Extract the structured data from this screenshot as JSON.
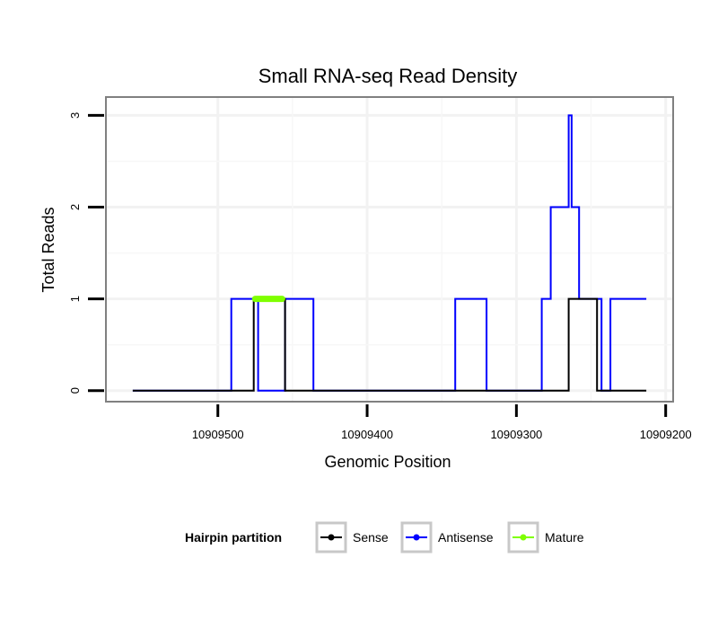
{
  "chart_data": {
    "type": "line",
    "title": "Small RNA-seq Read Density",
    "xlabel": "Genomic Position",
    "ylabel": "Total Reads",
    "xlim": [
      10909575,
      10909195
    ],
    "x_reversed": true,
    "ylim": [
      -0.12,
      3.2
    ],
    "xticks": [
      10909500,
      10909400,
      10909300,
      10909200
    ],
    "xtick_labels": [
      "10909500",
      "10909400",
      "10909300",
      "10909200"
    ],
    "yticks": [
      0,
      1,
      2,
      3
    ],
    "ytick_labels": [
      "0",
      "1",
      "2",
      "3"
    ],
    "grid": true,
    "legend": {
      "title": "Hairpin partition",
      "position": "bottom",
      "entries": [
        "Sense",
        "Antisense",
        "Mature"
      ]
    },
    "series": [
      {
        "name": "Antisense",
        "color": "#0000ff",
        "points": [
          [
            10909557,
            0
          ],
          [
            10909491,
            0
          ],
          [
            10909491,
            1
          ],
          [
            10909473,
            1
          ],
          [
            10909473,
            0
          ],
          [
            10909455,
            0
          ],
          [
            10909455,
            1
          ],
          [
            10909436,
            1
          ],
          [
            10909436,
            0
          ],
          [
            10909341,
            0
          ],
          [
            10909341,
            1
          ],
          [
            10909320,
            1
          ],
          [
            10909320,
            0
          ],
          [
            10909283,
            0
          ],
          [
            10909283,
            1
          ],
          [
            10909277,
            1
          ],
          [
            10909277,
            2
          ],
          [
            10909265,
            2
          ],
          [
            10909265,
            3
          ],
          [
            10909263,
            3
          ],
          [
            10909263,
            2
          ],
          [
            10909258,
            2
          ],
          [
            10909258,
            1
          ],
          [
            10909243,
            1
          ],
          [
            10909243,
            0
          ],
          [
            10909237,
            0
          ],
          [
            10909237,
            1
          ],
          [
            10909213,
            1
          ]
        ]
      },
      {
        "name": "Sense",
        "color": "#000000",
        "points": [
          [
            10909557,
            0
          ],
          [
            10909476,
            0
          ],
          [
            10909476,
            1
          ],
          [
            10909455,
            1
          ],
          [
            10909455,
            0
          ],
          [
            10909265,
            0
          ],
          [
            10909265,
            1
          ],
          [
            10909246,
            1
          ],
          [
            10909246,
            0
          ],
          [
            10909213,
            0
          ]
        ]
      },
      {
        "name": "Mature",
        "color": "#7fff00",
        "points": [
          [
            10909475,
            1
          ],
          [
            10909457,
            1
          ]
        ]
      }
    ]
  }
}
